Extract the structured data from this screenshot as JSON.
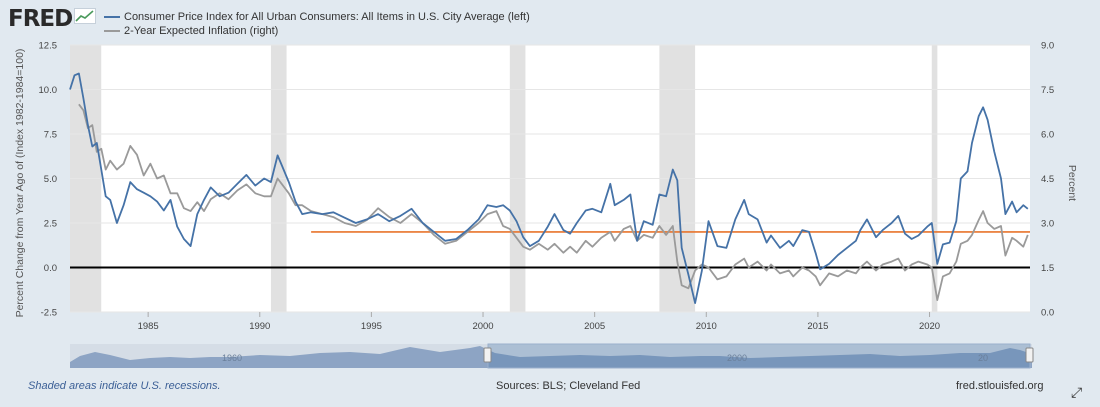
{
  "header": {
    "logo": "FRED"
  },
  "legend": [
    {
      "label": "Consumer Price Index for All Urban Consumers: All Items in U.S. City Average (left)",
      "color": "#4572a7"
    },
    {
      "label": "2-Year Expected Inflation (right)",
      "color": "#9a9a9a"
    }
  ],
  "footer": {
    "recession_note": "Shaded areas indicate U.S. recessions.",
    "sources": "Sources: BLS; Cleveland Fed",
    "site": "fred.stlouisfed.org"
  },
  "navigator_labels": [
    "1960",
    "2000",
    "20"
  ],
  "chart_data": {
    "type": "line",
    "x_ticks": [
      "1985",
      "1990",
      "1995",
      "2000",
      "2005",
      "2010",
      "2015",
      "2020"
    ],
    "x_range": [
      1981.5,
      2024.5
    ],
    "left_axis": {
      "label": "Percent Change from Year Ago of (Index 1982-1984=100)",
      "ticks": [
        "12.5",
        "10.0",
        "7.5",
        "5.0",
        "2.5",
        "0.0",
        "-2.5"
      ],
      "range": [
        -2.5,
        12.5
      ]
    },
    "right_axis": {
      "label": "Percent",
      "ticks": [
        "9.0",
        "7.5",
        "6.0",
        "4.5",
        "3.0",
        "1.5",
        "0.0"
      ],
      "range": [
        0,
        9
      ]
    },
    "recessions": [
      [
        1981.5,
        1982.9
      ],
      [
        1990.5,
        1991.2
      ],
      [
        2001.2,
        2001.9
      ],
      [
        2007.9,
        2009.5
      ],
      [
        2020.1,
        2020.35
      ]
    ],
    "reference_lines": [
      {
        "name": "zero",
        "value": 0,
        "color": "#000000",
        "x_from": 1981.5,
        "x_to": 2024.5
      },
      {
        "name": "target",
        "value": 2.0,
        "color": "#e8742c",
        "x_from": 1992.3,
        "x_to": 2024.5
      }
    ],
    "series": [
      {
        "name": "Consumer Price Index for All Urban Consumers: All Items in U.S. City Average (left)",
        "axis": "left",
        "color": "#4572a7",
        "points": [
          [
            1981.5,
            10.0
          ],
          [
            1981.7,
            10.8
          ],
          [
            1981.9,
            10.9
          ],
          [
            1982.1,
            9.5
          ],
          [
            1982.3,
            8.0
          ],
          [
            1982.5,
            6.8
          ],
          [
            1982.7,
            7.0
          ],
          [
            1982.9,
            5.5
          ],
          [
            1983.1,
            4.0
          ],
          [
            1983.3,
            3.8
          ],
          [
            1983.6,
            2.5
          ],
          [
            1983.9,
            3.5
          ],
          [
            1984.2,
            4.8
          ],
          [
            1984.5,
            4.4
          ],
          [
            1984.8,
            4.2
          ],
          [
            1985.1,
            4.0
          ],
          [
            1985.4,
            3.7
          ],
          [
            1985.7,
            3.2
          ],
          [
            1986.0,
            3.8
          ],
          [
            1986.3,
            2.3
          ],
          [
            1986.6,
            1.6
          ],
          [
            1986.9,
            1.2
          ],
          [
            1987.2,
            3.0
          ],
          [
            1987.5,
            3.8
          ],
          [
            1987.8,
            4.5
          ],
          [
            1988.2,
            4.0
          ],
          [
            1988.6,
            4.2
          ],
          [
            1989.0,
            4.7
          ],
          [
            1989.4,
            5.2
          ],
          [
            1989.8,
            4.6
          ],
          [
            1990.2,
            5.0
          ],
          [
            1990.5,
            4.8
          ],
          [
            1990.8,
            6.3
          ],
          [
            1991.0,
            5.7
          ],
          [
            1991.3,
            4.8
          ],
          [
            1991.6,
            3.7
          ],
          [
            1991.9,
            3.0
          ],
          [
            1992.3,
            3.1
          ],
          [
            1992.8,
            3.0
          ],
          [
            1993.3,
            3.1
          ],
          [
            1993.8,
            2.8
          ],
          [
            1994.3,
            2.5
          ],
          [
            1994.8,
            2.7
          ],
          [
            1995.3,
            3.0
          ],
          [
            1995.8,
            2.6
          ],
          [
            1996.3,
            2.9
          ],
          [
            1996.8,
            3.3
          ],
          [
            1997.3,
            2.5
          ],
          [
            1997.8,
            2.0
          ],
          [
            1998.3,
            1.5
          ],
          [
            1998.8,
            1.6
          ],
          [
            1999.3,
            2.1
          ],
          [
            1999.8,
            2.7
          ],
          [
            2000.2,
            3.5
          ],
          [
            2000.6,
            3.4
          ],
          [
            2000.9,
            3.5
          ],
          [
            2001.2,
            3.2
          ],
          [
            2001.5,
            2.6
          ],
          [
            2001.8,
            1.7
          ],
          [
            2002.1,
            1.2
          ],
          [
            2002.5,
            1.5
          ],
          [
            2002.9,
            2.3
          ],
          [
            2003.2,
            3.0
          ],
          [
            2003.6,
            2.1
          ],
          [
            2003.9,
            1.9
          ],
          [
            2004.2,
            2.5
          ],
          [
            2004.6,
            3.2
          ],
          [
            2004.9,
            3.3
          ],
          [
            2005.3,
            3.1
          ],
          [
            2005.7,
            4.7
          ],
          [
            2005.9,
            3.5
          ],
          [
            2006.3,
            3.8
          ],
          [
            2006.6,
            4.1
          ],
          [
            2006.9,
            1.5
          ],
          [
            2007.2,
            2.6
          ],
          [
            2007.6,
            2.4
          ],
          [
            2007.9,
            4.1
          ],
          [
            2008.2,
            4.0
          ],
          [
            2008.5,
            5.5
          ],
          [
            2008.7,
            4.9
          ],
          [
            2008.9,
            1.1
          ],
          [
            2009.2,
            -0.4
          ],
          [
            2009.5,
            -2.0
          ],
          [
            2009.8,
            -0.2
          ],
          [
            2010.1,
            2.6
          ],
          [
            2010.5,
            1.2
          ],
          [
            2010.9,
            1.1
          ],
          [
            2011.3,
            2.7
          ],
          [
            2011.7,
            3.8
          ],
          [
            2011.9,
            3.0
          ],
          [
            2012.3,
            2.7
          ],
          [
            2012.7,
            1.4
          ],
          [
            2012.9,
            1.8
          ],
          [
            2013.3,
            1.1
          ],
          [
            2013.7,
            1.5
          ],
          [
            2013.9,
            1.2
          ],
          [
            2014.3,
            2.1
          ],
          [
            2014.6,
            2.0
          ],
          [
            2014.9,
            0.8
          ],
          [
            2015.1,
            -0.1
          ],
          [
            2015.5,
            0.2
          ],
          [
            2015.9,
            0.7
          ],
          [
            2016.3,
            1.1
          ],
          [
            2016.7,
            1.5
          ],
          [
            2016.9,
            2.1
          ],
          [
            2017.2,
            2.7
          ],
          [
            2017.6,
            1.7
          ],
          [
            2017.9,
            2.1
          ],
          [
            2018.3,
            2.5
          ],
          [
            2018.6,
            2.9
          ],
          [
            2018.9,
            1.9
          ],
          [
            2019.2,
            1.6
          ],
          [
            2019.5,
            1.8
          ],
          [
            2019.9,
            2.3
          ],
          [
            2020.1,
            2.5
          ],
          [
            2020.35,
            0.2
          ],
          [
            2020.6,
            1.3
          ],
          [
            2020.9,
            1.4
          ],
          [
            2021.2,
            2.6
          ],
          [
            2021.4,
            5.0
          ],
          [
            2021.7,
            5.4
          ],
          [
            2021.9,
            7.0
          ],
          [
            2022.2,
            8.5
          ],
          [
            2022.4,
            9.0
          ],
          [
            2022.6,
            8.3
          ],
          [
            2022.9,
            6.5
          ],
          [
            2023.2,
            5.0
          ],
          [
            2023.4,
            3.0
          ],
          [
            2023.7,
            3.7
          ],
          [
            2023.9,
            3.1
          ],
          [
            2024.2,
            3.5
          ],
          [
            2024.4,
            3.3
          ]
        ]
      },
      {
        "name": "2-Year Expected Inflation (right)",
        "axis": "right",
        "color": "#9a9a9a",
        "points": [
          [
            1981.9,
            7.0
          ],
          [
            1982.1,
            6.8
          ],
          [
            1982.3,
            6.2
          ],
          [
            1982.5,
            6.3
          ],
          [
            1982.7,
            5.4
          ],
          [
            1982.9,
            5.5
          ],
          [
            1983.1,
            4.8
          ],
          [
            1983.3,
            5.1
          ],
          [
            1983.6,
            4.8
          ],
          [
            1983.9,
            5.0
          ],
          [
            1984.2,
            5.6
          ],
          [
            1984.5,
            5.3
          ],
          [
            1984.8,
            4.6
          ],
          [
            1985.1,
            5.0
          ],
          [
            1985.4,
            4.5
          ],
          [
            1985.7,
            4.6
          ],
          [
            1986.0,
            4.0
          ],
          [
            1986.3,
            4.0
          ],
          [
            1986.6,
            3.5
          ],
          [
            1986.9,
            3.4
          ],
          [
            1987.2,
            3.7
          ],
          [
            1987.5,
            3.4
          ],
          [
            1987.8,
            3.8
          ],
          [
            1988.2,
            4.0
          ],
          [
            1988.6,
            3.8
          ],
          [
            1989.0,
            4.1
          ],
          [
            1989.4,
            4.3
          ],
          [
            1989.8,
            4.0
          ],
          [
            1990.2,
            3.9
          ],
          [
            1990.5,
            3.9
          ],
          [
            1990.8,
            4.5
          ],
          [
            1991.0,
            4.3
          ],
          [
            1991.3,
            4.0
          ],
          [
            1991.6,
            3.6
          ],
          [
            1991.9,
            3.6
          ],
          [
            1992.3,
            3.4
          ],
          [
            1992.8,
            3.3
          ],
          [
            1993.3,
            3.2
          ],
          [
            1993.8,
            3.0
          ],
          [
            1994.3,
            2.9
          ],
          [
            1994.8,
            3.1
          ],
          [
            1995.3,
            3.5
          ],
          [
            1995.8,
            3.2
          ],
          [
            1996.3,
            3.0
          ],
          [
            1996.8,
            3.3
          ],
          [
            1997.3,
            3.0
          ],
          [
            1997.8,
            2.6
          ],
          [
            1998.3,
            2.3
          ],
          [
            1998.8,
            2.4
          ],
          [
            1999.3,
            2.7
          ],
          [
            1999.8,
            3.0
          ],
          [
            2000.2,
            3.3
          ],
          [
            2000.6,
            3.4
          ],
          [
            2000.9,
            2.9
          ],
          [
            2001.2,
            2.8
          ],
          [
            2001.5,
            2.5
          ],
          [
            2001.8,
            2.2
          ],
          [
            2002.1,
            2.1
          ],
          [
            2002.5,
            2.3
          ],
          [
            2002.9,
            2.1
          ],
          [
            2003.2,
            2.3
          ],
          [
            2003.6,
            2.0
          ],
          [
            2003.9,
            2.2
          ],
          [
            2004.2,
            2.0
          ],
          [
            2004.6,
            2.4
          ],
          [
            2004.9,
            2.2
          ],
          [
            2005.3,
            2.5
          ],
          [
            2005.7,
            2.7
          ],
          [
            2005.9,
            2.4
          ],
          [
            2006.3,
            2.8
          ],
          [
            2006.6,
            2.9
          ],
          [
            2006.9,
            2.4
          ],
          [
            2007.2,
            2.6
          ],
          [
            2007.6,
            2.5
          ],
          [
            2007.9,
            2.9
          ],
          [
            2008.2,
            2.6
          ],
          [
            2008.5,
            2.9
          ],
          [
            2008.7,
            1.7
          ],
          [
            2008.9,
            0.9
          ],
          [
            2009.2,
            0.8
          ],
          [
            2009.5,
            1.4
          ],
          [
            2009.8,
            1.6
          ],
          [
            2010.1,
            1.5
          ],
          [
            2010.5,
            1.1
          ],
          [
            2010.9,
            1.2
          ],
          [
            2011.3,
            1.6
          ],
          [
            2011.7,
            1.8
          ],
          [
            2011.9,
            1.5
          ],
          [
            2012.3,
            1.7
          ],
          [
            2012.7,
            1.4
          ],
          [
            2012.9,
            1.6
          ],
          [
            2013.3,
            1.3
          ],
          [
            2013.7,
            1.4
          ],
          [
            2013.9,
            1.2
          ],
          [
            2014.3,
            1.5
          ],
          [
            2014.6,
            1.4
          ],
          [
            2014.9,
            1.2
          ],
          [
            2015.1,
            0.9
          ],
          [
            2015.5,
            1.3
          ],
          [
            2015.9,
            1.2
          ],
          [
            2016.3,
            1.4
          ],
          [
            2016.7,
            1.3
          ],
          [
            2016.9,
            1.5
          ],
          [
            2017.2,
            1.7
          ],
          [
            2017.6,
            1.4
          ],
          [
            2017.9,
            1.6
          ],
          [
            2018.3,
            1.7
          ],
          [
            2018.6,
            1.8
          ],
          [
            2018.9,
            1.4
          ],
          [
            2019.2,
            1.6
          ],
          [
            2019.5,
            1.7
          ],
          [
            2019.9,
            1.6
          ],
          [
            2020.1,
            1.5
          ],
          [
            2020.35,
            0.4
          ],
          [
            2020.6,
            1.2
          ],
          [
            2020.9,
            1.3
          ],
          [
            2021.2,
            1.7
          ],
          [
            2021.4,
            2.3
          ],
          [
            2021.7,
            2.4
          ],
          [
            2021.9,
            2.6
          ],
          [
            2022.2,
            3.1
          ],
          [
            2022.4,
            3.4
          ],
          [
            2022.6,
            3.0
          ],
          [
            2022.9,
            2.8
          ],
          [
            2023.2,
            2.9
          ],
          [
            2023.4,
            1.9
          ],
          [
            2023.7,
            2.5
          ],
          [
            2023.9,
            2.4
          ],
          [
            2024.2,
            2.2
          ],
          [
            2024.4,
            2.6
          ]
        ]
      }
    ]
  }
}
